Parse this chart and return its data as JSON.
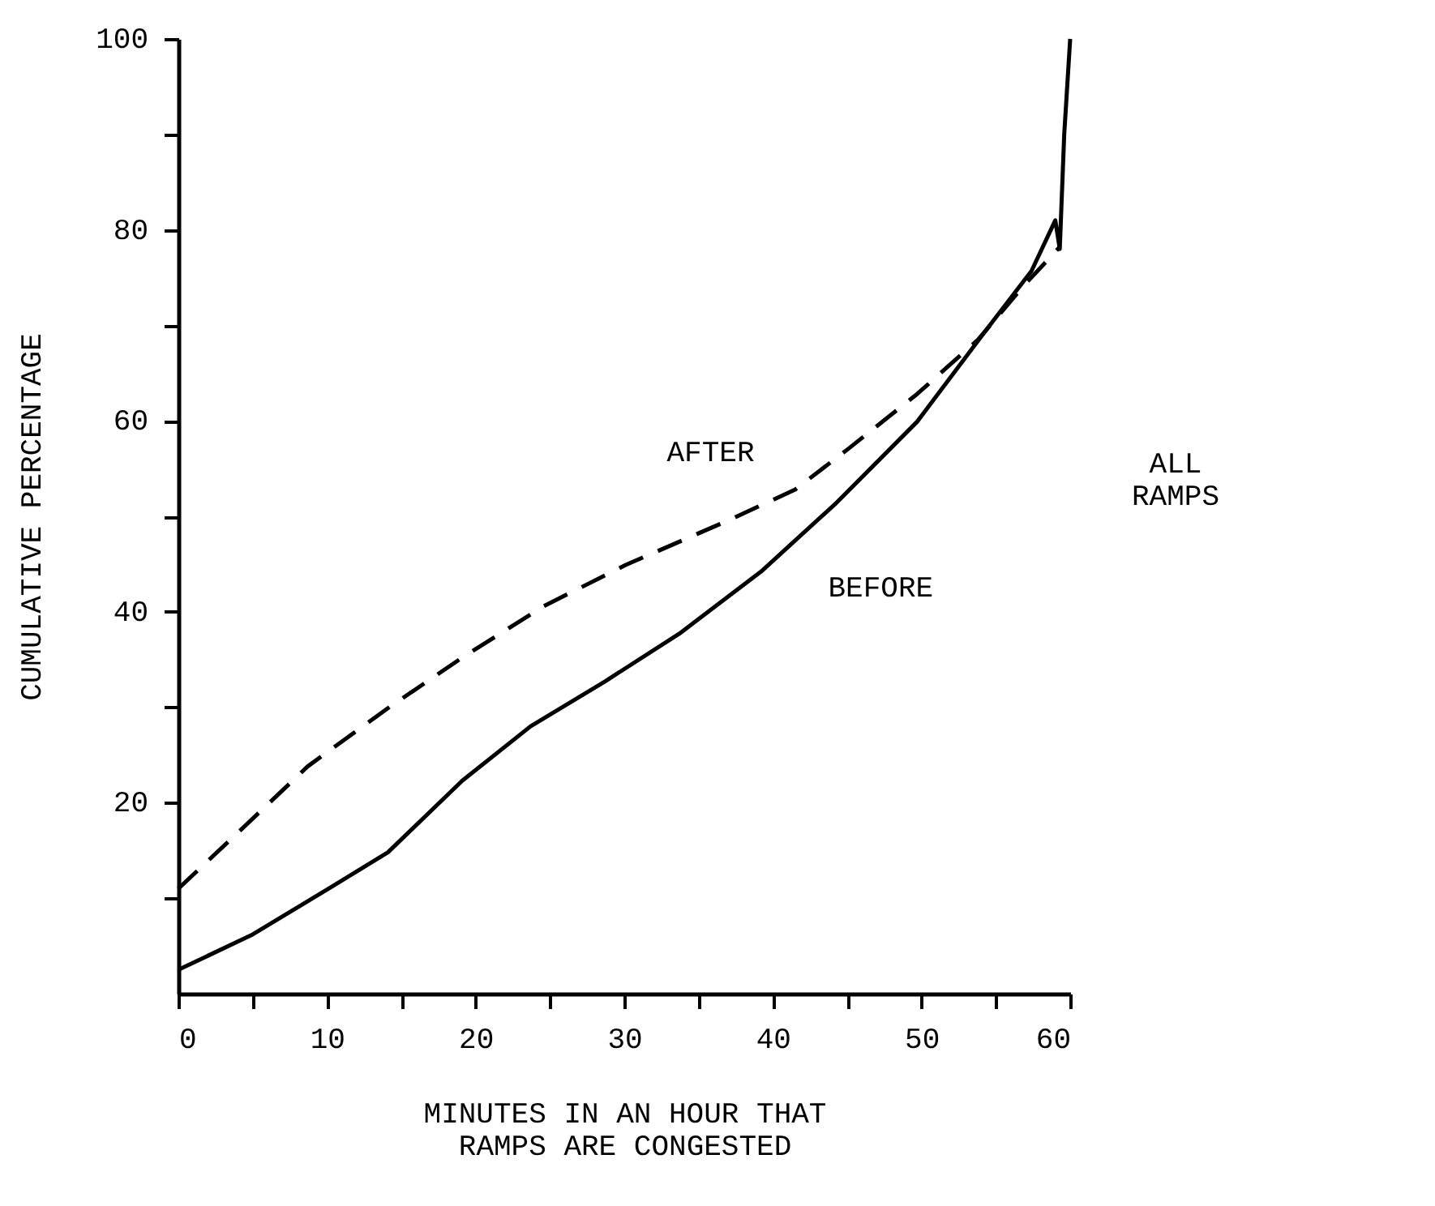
{
  "chart_data": {
    "type": "line",
    "xlabel": "MINUTES IN AN HOUR THAT\nRAMPS ARE CONGESTED",
    "ylabel": "CUMULATIVE PERCENTAGE",
    "annotations": [
      "ALL\nRAMPS"
    ],
    "series": [
      {
        "name": "BEFORE",
        "color": "#000000",
        "line_style": "solid",
        "x": [
          0,
          5,
          10,
          14.1,
          19.1,
          23.7,
          28.7,
          33.7,
          39.2,
          44.2,
          49.7,
          54.2,
          57.4,
          59,
          59.3,
          59.6,
          60
        ],
        "values": [
          2.5,
          6.2,
          10.9,
          14.8,
          22.3,
          28,
          32.7,
          37.7,
          44.2,
          51.3,
          59.9,
          69.2,
          75.7,
          81,
          78,
          90,
          100
        ]
      },
      {
        "name": "AFTER",
        "color": "#000000",
        "line_style": "dashed",
        "x": [
          0,
          4.1,
          8.7,
          14.1,
          19.1,
          24.6,
          30.1,
          36.9,
          41.5,
          45.1,
          49.7,
          53.8,
          56.9,
          59.3
        ],
        "values": [
          11,
          17,
          23.8,
          29.9,
          35.2,
          40.6,
          44.9,
          49.5,
          52.8,
          57.1,
          62.8,
          68.5,
          74.2,
          78.2
        ]
      }
    ],
    "xlim": [
      0,
      60
    ],
    "xticks": [
      0,
      {
        "value": 5,
        "label": null
      },
      10,
      {
        "value": 15,
        "label": null
      },
      20,
      {
        "value": 25,
        "label": null
      },
      30,
      {
        "value": 35,
        "label": null
      },
      40,
      {
        "value": 45,
        "label": null
      },
      50,
      {
        "value": 55,
        "label": null
      },
      60
    ],
    "ylim": [
      0,
      100
    ],
    "yticks": [
      {
        "value": 10,
        "label": null
      },
      20,
      {
        "value": 30,
        "label": null
      },
      40,
      {
        "value": 50,
        "label": null
      },
      60,
      {
        "value": 70,
        "label": null
      },
      80,
      {
        "value": 90,
        "label": null
      },
      100
    ],
    "grid": false
  }
}
